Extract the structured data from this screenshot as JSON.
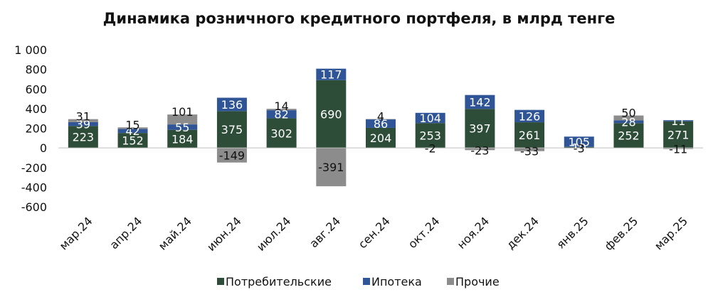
{
  "chart_data": {
    "type": "bar",
    "stacked": true,
    "title": "Динамика розничного кредитного портфеля, в млрд тенге",
    "categories": [
      "мар.24",
      "апр.24",
      "май.24",
      "июн.24",
      "июл.24",
      "авг.24",
      "сен.24",
      "окт.24",
      "ноя.24",
      "дек.24",
      "янв.25",
      "фев.25",
      "мар.25"
    ],
    "series": [
      {
        "name": "Потребительские",
        "color": "#2d4d38",
        "values": [
          223,
          152,
          184,
          375,
          302,
          690,
          204,
          253,
          397,
          261,
          10,
          252,
          271
        ]
      },
      {
        "name": "Ипотека",
        "color": "#2f5597",
        "values": [
          39,
          42,
          55,
          136,
          82,
          117,
          86,
          104,
          142,
          126,
          105,
          28,
          11
        ]
      },
      {
        "name": "Прочие",
        "color": "#8c8c8c",
        "values": [
          31,
          15,
          101,
          -149,
          14,
          -391,
          4,
          -2,
          -23,
          -33,
          -3,
          50,
          -11
        ]
      }
    ],
    "ylim": [
      -600,
      1000
    ],
    "yticks": [
      1000,
      800,
      600,
      400,
      200,
      0,
      -200,
      -400,
      -600
    ],
    "ytick_labels": [
      "1 000",
      "800",
      "600",
      "400",
      "200",
      "0",
      "-200",
      "-400",
      "-600"
    ],
    "grid": false,
    "legend": "bottom"
  }
}
